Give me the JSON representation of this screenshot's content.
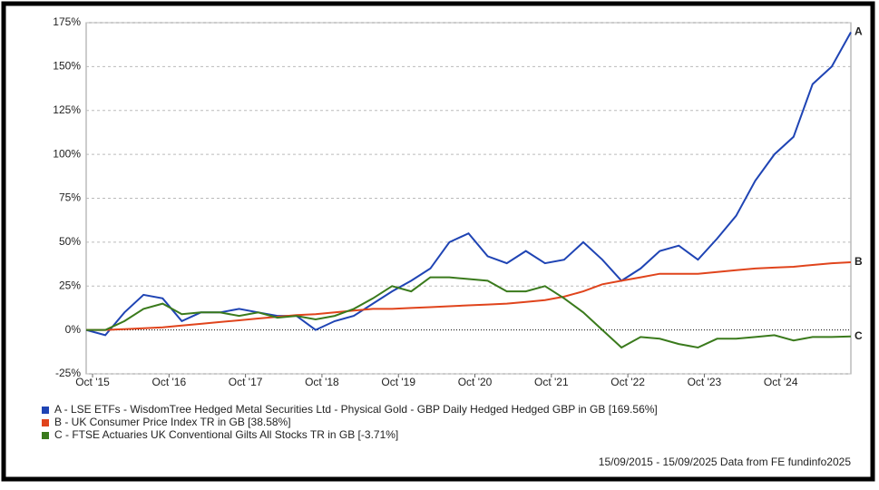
{
  "chart_data": {
    "type": "line",
    "x": [
      "2015-09",
      "2015-12",
      "2016-03",
      "2016-06",
      "2016-09",
      "2016-12",
      "2017-03",
      "2017-06",
      "2017-09",
      "2017-12",
      "2018-03",
      "2018-06",
      "2018-09",
      "2018-12",
      "2019-03",
      "2019-06",
      "2019-09",
      "2019-12",
      "2020-03",
      "2020-06",
      "2020-09",
      "2020-12",
      "2021-03",
      "2021-06",
      "2021-09",
      "2021-12",
      "2022-03",
      "2022-06",
      "2022-09",
      "2022-12",
      "2023-03",
      "2023-06",
      "2023-09",
      "2023-12",
      "2024-03",
      "2024-06",
      "2024-09",
      "2024-12",
      "2025-03",
      "2025-06",
      "2025-09"
    ],
    "xlim": [
      "2015-09",
      "2025-09"
    ],
    "xticks": [
      {
        "value": "2015-10",
        "label": "Oct '15"
      },
      {
        "value": "2016-10",
        "label": "Oct '16"
      },
      {
        "value": "2017-10",
        "label": "Oct '17"
      },
      {
        "value": "2018-10",
        "label": "Oct '18"
      },
      {
        "value": "2019-10",
        "label": "Oct '19"
      },
      {
        "value": "2020-10",
        "label": "Oct '20"
      },
      {
        "value": "2021-10",
        "label": "Oct '21"
      },
      {
        "value": "2022-10",
        "label": "Oct '22"
      },
      {
        "value": "2023-10",
        "label": "Oct '23"
      },
      {
        "value": "2024-10",
        "label": "Oct '24"
      }
    ],
    "ylim": [
      -25,
      175
    ],
    "yticks": [
      {
        "value": -25,
        "label": "-25%"
      },
      {
        "value": 0,
        "label": "0%"
      },
      {
        "value": 25,
        "label": "25%"
      },
      {
        "value": 50,
        "label": "50%"
      },
      {
        "value": 75,
        "label": "75%"
      },
      {
        "value": 100,
        "label": "100%"
      },
      {
        "value": 125,
        "label": "125%"
      },
      {
        "value": 150,
        "label": "150%"
      },
      {
        "value": 175,
        "label": "175%"
      }
    ],
    "grid": true,
    "series": [
      {
        "name": "A - LSE ETFs - WisdomTree Hedged Metal Securities Ltd - Physical Gold - GBP Daily Hedged Hedged GBP in GB [169.56%]",
        "end_label": "A",
        "color": "#1f44b4",
        "values": [
          0,
          -3,
          10,
          20,
          18,
          5,
          10,
          10,
          12,
          10,
          8,
          8,
          0,
          5,
          8,
          15,
          22,
          28,
          35,
          50,
          55,
          42,
          38,
          45,
          38,
          40,
          50,
          40,
          28,
          35,
          45,
          48,
          40,
          52,
          65,
          85,
          100,
          110,
          140,
          150,
          169.56
        ]
      },
      {
        "name": "B - UK Consumer Price Index TR in GB [38.58%]",
        "end_label": "B",
        "color": "#e0441c",
        "values": [
          0,
          0,
          0.5,
          1,
          1.5,
          2.5,
          3.5,
          4.5,
          5.5,
          6.5,
          7.5,
          8.5,
          9,
          10,
          11,
          12,
          12,
          12.5,
          13,
          13.5,
          14,
          14.5,
          15,
          16,
          17,
          19,
          22,
          26,
          28,
          30,
          32,
          32,
          32,
          33,
          34,
          35,
          35.5,
          36,
          37,
          38,
          38.58
        ]
      },
      {
        "name": "C - FTSE Actuaries UK Conventional Gilts All Stocks TR in GB [-3.71%]",
        "end_label": "C",
        "color": "#3a7a1c",
        "values": [
          0,
          0,
          5,
          12,
          15,
          9,
          10,
          10,
          8,
          10,
          7,
          8,
          6,
          8,
          12,
          18,
          25,
          22,
          30,
          30,
          29,
          28,
          22,
          22,
          25,
          18,
          10,
          0,
          -10,
          -4,
          -5,
          -8,
          -10,
          -5,
          -5,
          -4,
          -3,
          -6,
          -4,
          -4,
          -3.71
        ]
      }
    ],
    "footer": "15/09/2015 - 15/09/2025 Data from FE fundinfo2025"
  }
}
